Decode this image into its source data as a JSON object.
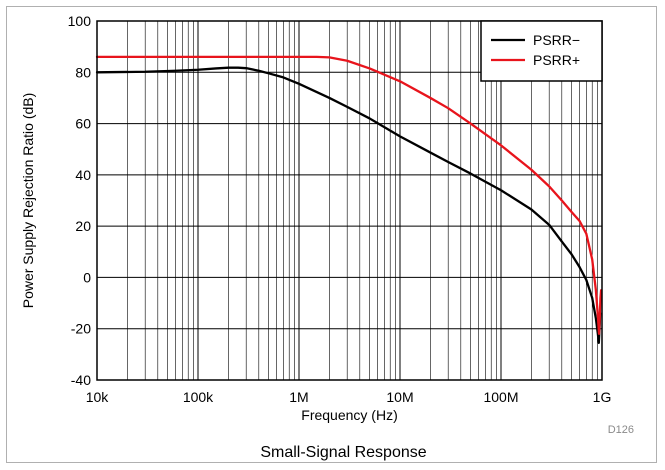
{
  "figure_id": "D126",
  "caption": "Small-Signal Response",
  "chart_data": {
    "type": "line",
    "xlabel": "Frequency (Hz)",
    "ylabel": "Power Supply Rejection Ratio (dB)",
    "x_scale": "log",
    "xlim": [
      10000,
      1000000000
    ],
    "ylim": [
      -40,
      100
    ],
    "x_ticks": [
      10000,
      100000,
      1000000,
      10000000,
      100000000,
      1000000000
    ],
    "x_tick_labels": [
      "10k",
      "100k",
      "1M",
      "10M",
      "100M",
      "1G"
    ],
    "y_ticks": [
      -40,
      -20,
      0,
      20,
      40,
      60,
      80,
      100
    ],
    "y_tick_labels": [
      "-40",
      "-20",
      "0",
      "20",
      "40",
      "60",
      "80",
      "100"
    ],
    "grid": true,
    "legend_position": "top-right",
    "series": [
      {
        "name": "PSRR−",
        "color": "#000000",
        "points": [
          [
            10000,
            80
          ],
          [
            30000,
            80.2
          ],
          [
            60000,
            80.6
          ],
          [
            100000,
            81.0
          ],
          [
            150000,
            81.5
          ],
          [
            200000,
            81.8
          ],
          [
            250000,
            81.8
          ],
          [
            300000,
            81.6
          ],
          [
            400000,
            80.6
          ],
          [
            500000,
            79.6
          ],
          [
            700000,
            78.0
          ],
          [
            1000000,
            75.5
          ],
          [
            2000000,
            70.0
          ],
          [
            3000000,
            66.5
          ],
          [
            5000000,
            62.0
          ],
          [
            10000000,
            55.0
          ],
          [
            20000000,
            48.7
          ],
          [
            30000000,
            45.0
          ],
          [
            50000000,
            40.5
          ],
          [
            100000000,
            34.0
          ],
          [
            200000000,
            26.5
          ],
          [
            300000000,
            20.5
          ],
          [
            400000000,
            14.0
          ],
          [
            500000000,
            9.0
          ],
          [
            600000000,
            4.0
          ],
          [
            700000000,
            -1.0
          ],
          [
            800000000,
            -8.0
          ],
          [
            870000000,
            -16.0
          ],
          [
            910000000,
            -22.0
          ],
          [
            930000000,
            -25.5
          ],
          [
            945000000,
            -20.0
          ],
          [
            960000000,
            -14.0
          ]
        ]
      },
      {
        "name": "PSRR+",
        "color": "#e8141c",
        "points": [
          [
            10000,
            86
          ],
          [
            100000,
            86
          ],
          [
            1000000,
            86
          ],
          [
            1500000,
            86
          ],
          [
            2000000,
            85.8
          ],
          [
            3000000,
            84.5
          ],
          [
            5000000,
            81.5
          ],
          [
            10000000,
            76.5
          ],
          [
            20000000,
            70.0
          ],
          [
            30000000,
            66.0
          ],
          [
            50000000,
            60.0
          ],
          [
            100000000,
            51.5
          ],
          [
            200000000,
            42.0
          ],
          [
            300000000,
            35.5
          ],
          [
            400000000,
            30.0
          ],
          [
            500000000,
            25.5
          ],
          [
            600000000,
            22.0
          ],
          [
            700000000,
            17.0
          ],
          [
            800000000,
            7.0
          ],
          [
            870000000,
            -5.0
          ],
          [
            910000000,
            -15.0
          ],
          [
            935000000,
            -22.0
          ],
          [
            950000000,
            -16.0
          ],
          [
            965000000,
            -8.0
          ],
          [
            980000000,
            -5.0
          ]
        ]
      }
    ]
  }
}
